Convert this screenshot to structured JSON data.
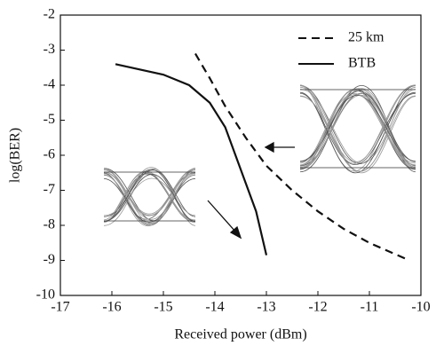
{
  "chart_data": {
    "type": "line",
    "x_label": "Received power (dBm)",
    "y_label": "log(BER)",
    "xlim": [
      -17,
      -10
    ],
    "xticks": [
      -17,
      -16,
      -15,
      -14,
      -13,
      -12,
      -11,
      -10
    ],
    "ylim": [
      -10,
      -2
    ],
    "yticks": [
      -10,
      -9,
      -8,
      -7,
      -6,
      -5,
      -4,
      -3,
      -2
    ],
    "grid": false,
    "legend": "upper right",
    "series": [
      {
        "name": "25 km",
        "color": "#111111",
        "style": "dashed",
        "x": [
          -14.38,
          -14.1,
          -13.8,
          -13.4,
          -13.0,
          -12.5,
          -12.0,
          -11.5,
          -11.0,
          -10.3
        ],
        "values": [
          -3.1,
          -3.8,
          -4.6,
          -5.5,
          -6.3,
          -7.0,
          -7.6,
          -8.1,
          -8.5,
          -8.95
        ]
      },
      {
        "name": "BTB",
        "color": "#111111",
        "style": "solid",
        "x": [
          -15.93,
          -15.0,
          -14.5,
          -14.1,
          -13.8,
          -13.6,
          -13.4,
          -13.2,
          -13.0
        ],
        "values": [
          -3.4,
          -3.7,
          -4.0,
          -4.5,
          -5.2,
          -6.0,
          -6.8,
          -7.6,
          -8.85
        ]
      }
    ]
  }
}
